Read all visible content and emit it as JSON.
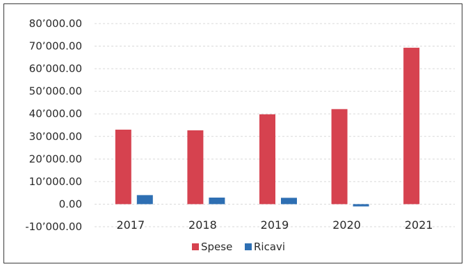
{
  "chart_data": {
    "type": "bar",
    "categories": [
      "2017",
      "2018",
      "2019",
      "2020",
      "2021"
    ],
    "series": [
      {
        "name": "Spese",
        "values": [
          33000,
          32700,
          39800,
          42100,
          69300
        ],
        "color": "#d6424f"
      },
      {
        "name": "Ricavi",
        "values": [
          4000,
          2900,
          2800,
          -1000,
          0
        ],
        "color": "#2e6fb3"
      }
    ],
    "ylim": [
      -10000,
      80000
    ],
    "yticks": [
      80000,
      70000,
      60000,
      50000,
      40000,
      30000,
      20000,
      10000,
      0,
      -10000
    ],
    "ytick_labels": [
      "80’000.00",
      "70’000.00",
      "60’000.00",
      "50’000.00",
      "40’000.00",
      "30’000.00",
      "20’000.00",
      "10’000.00",
      "0.00",
      "-10’000.00"
    ],
    "grid": true,
    "legend_position": "bottom",
    "title": "",
    "xlabel": "",
    "ylabel": ""
  }
}
